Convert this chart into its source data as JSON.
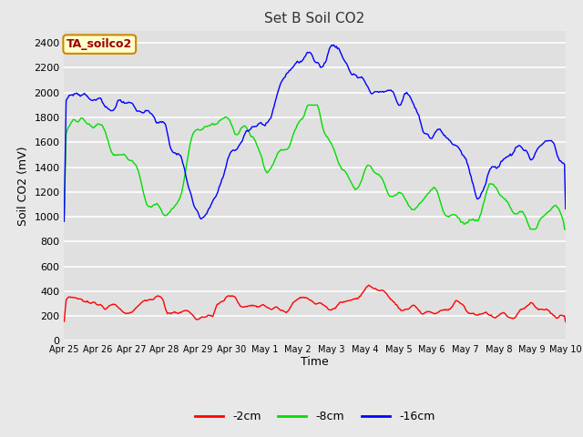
{
  "title": "Set B Soil CO2",
  "xlabel": "Time",
  "ylabel": "Soil CO2 (mV)",
  "ylim": [
    0,
    2500
  ],
  "yticks": [
    0,
    200,
    400,
    600,
    800,
    1000,
    1200,
    1400,
    1600,
    1800,
    2000,
    2200,
    2400
  ],
  "colors": {
    "2cm": "#ff0000",
    "8cm": "#00dd00",
    "16cm": "#0000ff"
  },
  "legend_labels": [
    "-2cm",
    "-8cm",
    "-16cm"
  ],
  "annotation_text": "TA_soilco2",
  "annotation_bg": "#ffffcc",
  "annotation_border": "#cc8800",
  "annotation_text_color": "#990000",
  "fig_bg": "#e8e8e8",
  "plot_bg": "#e0e0e0",
  "grid_color": "#ffffff",
  "xtick_labels": [
    "Apr 25",
    "Apr 26",
    "Apr 27",
    "Apr 28",
    "Apr 29",
    "Apr 30",
    "May 1",
    "May 2",
    "May 3",
    "May 4",
    "May 5",
    "May 6",
    "May 7",
    "May 8",
    "May 9",
    "May 10"
  ]
}
